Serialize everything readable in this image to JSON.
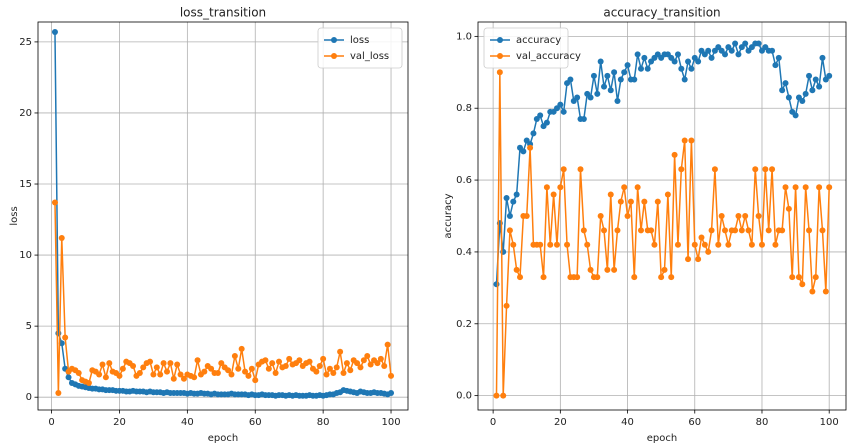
{
  "chart_data": [
    {
      "type": "line",
      "title": "loss_transition",
      "x_label": "epoch",
      "y_label": "loss",
      "x": [
        1,
        2,
        3,
        4,
        5,
        6,
        7,
        8,
        9,
        10,
        11,
        12,
        13,
        14,
        15,
        16,
        17,
        18,
        19,
        20,
        21,
        22,
        23,
        24,
        25,
        26,
        27,
        28,
        29,
        30,
        31,
        32,
        33,
        34,
        35,
        36,
        37,
        38,
        39,
        40,
        41,
        42,
        43,
        44,
        45,
        46,
        47,
        48,
        49,
        50,
        51,
        52,
        53,
        54,
        55,
        56,
        57,
        58,
        59,
        60,
        61,
        62,
        63,
        64,
        65,
        66,
        67,
        68,
        69,
        70,
        71,
        72,
        73,
        74,
        75,
        76,
        77,
        78,
        79,
        80,
        81,
        82,
        83,
        84,
        85,
        86,
        87,
        88,
        89,
        90,
        91,
        92,
        93,
        94,
        95,
        96,
        97,
        98,
        99,
        100
      ],
      "series": [
        {
          "name": "loss",
          "color": "#1f77b4",
          "values": [
            25.7,
            4.5,
            3.8,
            2.0,
            1.4,
            1.0,
            0.9,
            0.8,
            0.75,
            0.7,
            0.65,
            0.6,
            0.6,
            0.55,
            0.55,
            0.5,
            0.5,
            0.5,
            0.45,
            0.45,
            0.45,
            0.4,
            0.4,
            0.45,
            0.4,
            0.4,
            0.4,
            0.35,
            0.4,
            0.35,
            0.35,
            0.35,
            0.3,
            0.35,
            0.3,
            0.3,
            0.3,
            0.3,
            0.3,
            0.25,
            0.3,
            0.25,
            0.25,
            0.3,
            0.25,
            0.25,
            0.2,
            0.25,
            0.2,
            0.2,
            0.2,
            0.2,
            0.25,
            0.2,
            0.2,
            0.2,
            0.2,
            0.15,
            0.2,
            0.15,
            0.15,
            0.2,
            0.15,
            0.15,
            0.15,
            0.1,
            0.15,
            0.15,
            0.1,
            0.15,
            0.1,
            0.15,
            0.1,
            0.1,
            0.1,
            0.15,
            0.1,
            0.1,
            0.15,
            0.1,
            0.15,
            0.2,
            0.2,
            0.3,
            0.35,
            0.5,
            0.45,
            0.4,
            0.35,
            0.3,
            0.4,
            0.35,
            0.3,
            0.3,
            0.35,
            0.3,
            0.3,
            0.25,
            0.2,
            0.3
          ]
        },
        {
          "name": "val_loss",
          "color": "#ff7f0e",
          "values": [
            13.7,
            0.3,
            11.2,
            4.2,
            1.8,
            2.0,
            1.9,
            1.7,
            1.2,
            1.1,
            1.0,
            1.9,
            1.8,
            1.6,
            2.3,
            1.4,
            2.4,
            1.8,
            1.7,
            1.5,
            2.0,
            2.5,
            2.4,
            2.2,
            1.5,
            1.7,
            2.1,
            2.4,
            2.5,
            1.6,
            2.1,
            1.6,
            2.4,
            1.8,
            2.4,
            1.3,
            2.3,
            1.6,
            1.3,
            1.6,
            1.5,
            1.4,
            2.6,
            1.6,
            1.8,
            2.2,
            2.0,
            1.7,
            1.7,
            2.4,
            2.1,
            1.9,
            1.6,
            2.9,
            2.0,
            3.4,
            1.8,
            1.5,
            2.0,
            1.2,
            2.3,
            2.5,
            2.6,
            2.0,
            2.4,
            1.7,
            2.5,
            2.1,
            2.2,
            2.7,
            2.3,
            2.4,
            2.6,
            2.2,
            2.4,
            2.5,
            2.0,
            1.8,
            2.2,
            2.7,
            1.6,
            2.0,
            1.7,
            2.1,
            3.2,
            1.7,
            2.4,
            1.9,
            2.6,
            2.4,
            2.1,
            2.6,
            2.9,
            2.3,
            2.6,
            2.4,
            2.7,
            2.2,
            3.7,
            1.5
          ]
        }
      ],
      "xlim": [
        -4,
        105
      ],
      "ylim": [
        -0.9,
        26.4
      ],
      "xticks": [
        0,
        20,
        40,
        60,
        80,
        100
      ],
      "yticks": [
        0,
        5,
        10,
        15,
        20,
        25
      ],
      "grid": true,
      "legend": "upper right"
    },
    {
      "type": "line",
      "title": "accuracy_transition",
      "x_label": "epoch",
      "y_label": "accuracy",
      "x": [
        1,
        2,
        3,
        4,
        5,
        6,
        7,
        8,
        9,
        10,
        11,
        12,
        13,
        14,
        15,
        16,
        17,
        18,
        19,
        20,
        21,
        22,
        23,
        24,
        25,
        26,
        27,
        28,
        29,
        30,
        31,
        32,
        33,
        34,
        35,
        36,
        37,
        38,
        39,
        40,
        41,
        42,
        43,
        44,
        45,
        46,
        47,
        48,
        49,
        50,
        51,
        52,
        53,
        54,
        55,
        56,
        57,
        58,
        59,
        60,
        61,
        62,
        63,
        64,
        65,
        66,
        67,
        68,
        69,
        70,
        71,
        72,
        73,
        74,
        75,
        76,
        77,
        78,
        79,
        80,
        81,
        82,
        83,
        84,
        85,
        86,
        87,
        88,
        89,
        90,
        91,
        92,
        93,
        94,
        95,
        96,
        97,
        98,
        99,
        100
      ],
      "series": [
        {
          "name": "accuracy",
          "color": "#1f77b4",
          "values": [
            0.31,
            0.48,
            0.4,
            0.55,
            0.5,
            0.54,
            0.56,
            0.69,
            0.68,
            0.71,
            0.7,
            0.73,
            0.77,
            0.78,
            0.75,
            0.76,
            0.79,
            0.79,
            0.8,
            0.81,
            0.79,
            0.87,
            0.88,
            0.82,
            0.83,
            0.77,
            0.77,
            0.84,
            0.83,
            0.89,
            0.84,
            0.93,
            0.86,
            0.89,
            0.85,
            0.9,
            0.82,
            0.88,
            0.9,
            0.92,
            0.88,
            0.88,
            0.95,
            0.91,
            0.94,
            0.91,
            0.93,
            0.94,
            0.95,
            0.94,
            0.95,
            0.95,
            0.94,
            0.93,
            0.95,
            0.91,
            0.88,
            0.93,
            0.91,
            0.94,
            0.93,
            0.96,
            0.95,
            0.96,
            0.94,
            0.96,
            0.97,
            0.96,
            0.95,
            0.97,
            0.96,
            0.98,
            0.95,
            0.97,
            0.98,
            0.96,
            0.97,
            0.98,
            0.98,
            0.96,
            0.97,
            0.96,
            0.96,
            0.92,
            0.94,
            0.85,
            0.87,
            0.83,
            0.79,
            0.78,
            0.83,
            0.82,
            0.84,
            0.89,
            0.85,
            0.88,
            0.86,
            0.94,
            0.88,
            0.89
          ]
        },
        {
          "name": "val_accuracy",
          "color": "#ff7f0e",
          "values": [
            0.0,
            0.9,
            0.0,
            0.25,
            0.46,
            0.42,
            0.35,
            0.33,
            0.5,
            0.5,
            0.69,
            0.42,
            0.42,
            0.42,
            0.33,
            0.58,
            0.42,
            0.56,
            0.42,
            0.58,
            0.63,
            0.42,
            0.33,
            0.33,
            0.33,
            0.63,
            0.46,
            0.42,
            0.35,
            0.33,
            0.33,
            0.5,
            0.46,
            0.35,
            0.56,
            0.35,
            0.46,
            0.54,
            0.58,
            0.5,
            0.54,
            0.33,
            0.58,
            0.46,
            0.54,
            0.46,
            0.46,
            0.42,
            0.54,
            0.33,
            0.35,
            0.56,
            0.33,
            0.67,
            0.42,
            0.63,
            0.71,
            0.38,
            0.71,
            0.42,
            0.38,
            0.44,
            0.42,
            0.4,
            0.46,
            0.63,
            0.42,
            0.5,
            0.46,
            0.42,
            0.46,
            0.46,
            0.5,
            0.46,
            0.5,
            0.46,
            0.42,
            0.63,
            0.5,
            0.42,
            0.63,
            0.46,
            0.63,
            0.42,
            0.46,
            0.46,
            0.58,
            0.52,
            0.33,
            0.58,
            0.33,
            0.31,
            0.58,
            0.46,
            0.29,
            0.33,
            0.58,
            0.46,
            0.29,
            0.58
          ]
        }
      ],
      "xlim": [
        -4.5,
        105
      ],
      "ylim": [
        -0.04,
        1.04
      ],
      "xticks": [
        0,
        20,
        40,
        60,
        80,
        100
      ],
      "yticks": [
        {
          "value": 0,
          "label": "0.0"
        },
        0.2,
        0.4,
        0.6,
        0.8,
        {
          "value": 1,
          "label": "1.0"
        }
      ],
      "grid": true,
      "legend": "upper left"
    }
  ]
}
